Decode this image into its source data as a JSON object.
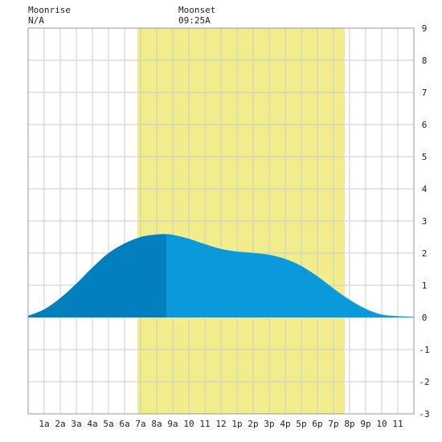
{
  "header": {
    "moonrise_label": "Moonrise",
    "moonrise_value": "N/A",
    "moonset_label": "Moonset",
    "moonset_value": "09:25A"
  },
  "colors": {
    "background": "#ffffff",
    "grid": "#cccccc",
    "daylight": "#f2ed8c",
    "tide_light": "#0a99db",
    "tide_dark": "#0280bd"
  },
  "chart_data": {
    "type": "area",
    "title": "",
    "xlabel": "",
    "ylabel": "",
    "xlim": [
      0,
      24
    ],
    "ylim": [
      -3,
      9
    ],
    "grid": true,
    "x_tick_labels": [
      "1a",
      "2a",
      "3a",
      "4a",
      "5a",
      "6a",
      "7a",
      "8a",
      "9a",
      "10",
      "11",
      "12",
      "1p",
      "2p",
      "3p",
      "4p",
      "5p",
      "6p",
      "7p",
      "8p",
      "9p",
      "10",
      "11"
    ],
    "y_ticks": [
      -3,
      -2,
      -1,
      0,
      1,
      2,
      3,
      4,
      5,
      6,
      7,
      8,
      9
    ],
    "daylight_hours": [
      6.8,
      19.7
    ],
    "dark_shade_hours": [
      0,
      8.6
    ],
    "series": [
      {
        "x": [
          0,
          1,
          2,
          3,
          4,
          5,
          6,
          7,
          8,
          8.5,
          9,
          10,
          11,
          12,
          13,
          14,
          15,
          16,
          17,
          18,
          19,
          20,
          21,
          22,
          23,
          24
        ],
        "values": [
          0.05,
          0.25,
          0.6,
          1.05,
          1.55,
          2.0,
          2.3,
          2.5,
          2.58,
          2.59,
          2.57,
          2.45,
          2.28,
          2.13,
          2.05,
          2.01,
          1.95,
          1.82,
          1.6,
          1.28,
          0.9,
          0.55,
          0.27,
          0.09,
          0.04,
          0.02
        ]
      }
    ]
  }
}
